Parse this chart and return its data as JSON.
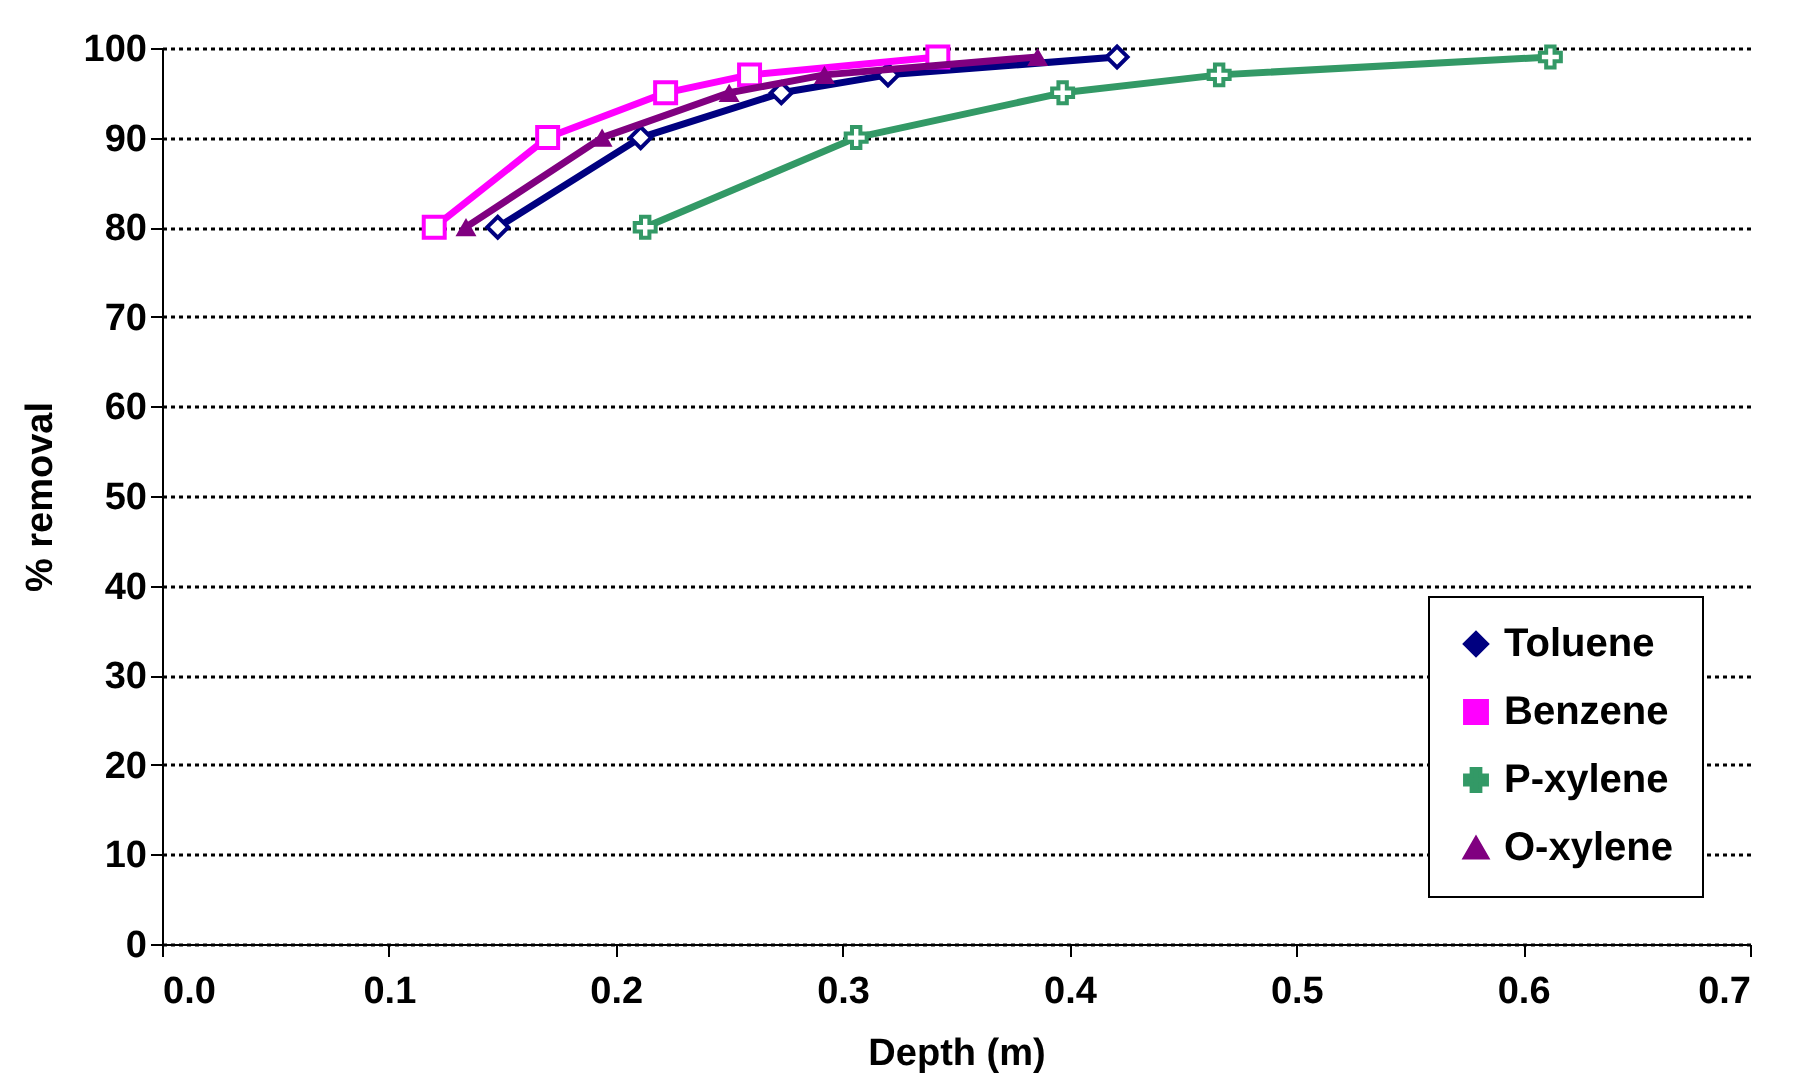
{
  "chart_data": {
    "type": "line",
    "xlabel": "Depth (m)",
    "ylabel": "% removal",
    "xlim": [
      0,
      0.7
    ],
    "xticks": [
      {
        "value": 0,
        "label": "0.0"
      },
      0.1,
      0.2,
      0.3,
      0.4,
      0.5,
      0.6,
      0.7
    ],
    "ylim": [
      0,
      100
    ],
    "yticks": [
      0,
      10,
      20,
      30,
      40,
      50,
      60,
      70,
      80,
      90,
      100
    ],
    "grid": "y",
    "legend": "bottom right",
    "line_style": "solid",
    "series": [
      {
        "name": "Toluene",
        "color": "#000080",
        "marker": "diamond",
        "x": [
          0.148,
          0.211,
          0.273,
          0.32,
          0.421
        ],
        "values": [
          80,
          90,
          95,
          97,
          99
        ]
      },
      {
        "name": "Benzene",
        "color": "#ff00ff",
        "marker": "square",
        "x": [
          0.12,
          0.17,
          0.222,
          0.259,
          0.342
        ],
        "values": [
          80,
          90,
          95,
          97,
          99
        ]
      },
      {
        "name": "P-xylene",
        "color": "#339966",
        "marker": "cross",
        "x": [
          0.213,
          0.306,
          0.397,
          0.466,
          0.612
        ],
        "values": [
          80,
          90,
          95,
          97,
          99
        ]
      },
      {
        "name": "O-xylene",
        "color": "#800080",
        "marker": "triangle",
        "x": [
          0.134,
          0.194,
          0.25,
          0.292,
          0.386
        ],
        "values": [
          80,
          90,
          95,
          97,
          99
        ]
      }
    ]
  }
}
